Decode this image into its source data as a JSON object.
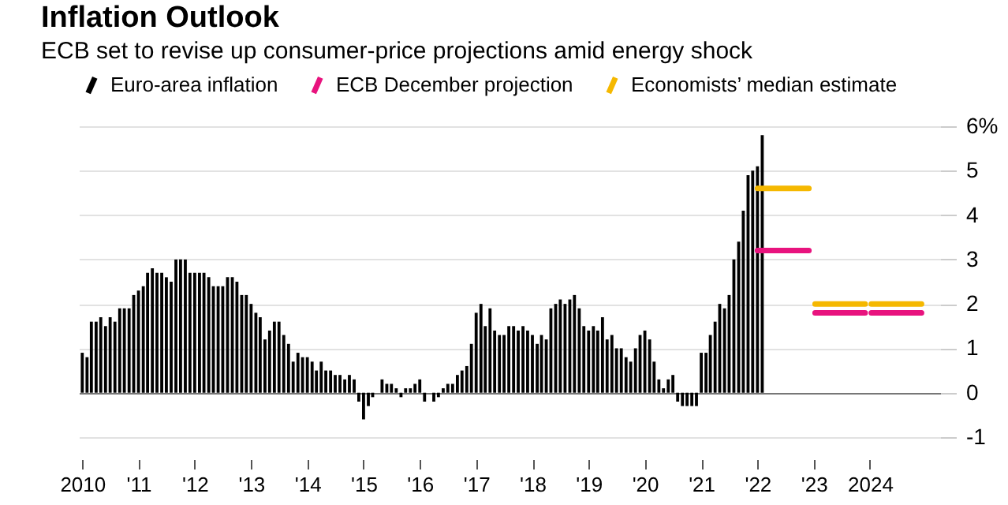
{
  "chart_data": {
    "type": "bar",
    "title": "Inflation Outlook",
    "subtitle": "ECB set to revise up consumer-price projections amid energy shock",
    "x": [
      "2010-01",
      "2010-02",
      "2010-03",
      "2010-04",
      "2010-05",
      "2010-06",
      "2010-07",
      "2010-08",
      "2010-09",
      "2010-10",
      "2010-11",
      "2010-12",
      "2011-01",
      "2011-02",
      "2011-03",
      "2011-04",
      "2011-05",
      "2011-06",
      "2011-07",
      "2011-08",
      "2011-09",
      "2011-10",
      "2011-11",
      "2011-12",
      "2012-01",
      "2012-02",
      "2012-03",
      "2012-04",
      "2012-05",
      "2012-06",
      "2012-07",
      "2012-08",
      "2012-09",
      "2012-10",
      "2012-11",
      "2012-12",
      "2013-01",
      "2013-02",
      "2013-03",
      "2013-04",
      "2013-05",
      "2013-06",
      "2013-07",
      "2013-08",
      "2013-09",
      "2013-10",
      "2013-11",
      "2013-12",
      "2014-01",
      "2014-02",
      "2014-03",
      "2014-04",
      "2014-05",
      "2014-06",
      "2014-07",
      "2014-08",
      "2014-09",
      "2014-10",
      "2014-11",
      "2014-12",
      "2015-01",
      "2015-02",
      "2015-03",
      "2015-04",
      "2015-05",
      "2015-06",
      "2015-07",
      "2015-08",
      "2015-09",
      "2015-10",
      "2015-11",
      "2015-12",
      "2016-01",
      "2016-02",
      "2016-03",
      "2016-04",
      "2016-05",
      "2016-06",
      "2016-07",
      "2016-08",
      "2016-09",
      "2016-10",
      "2016-11",
      "2016-12",
      "2017-01",
      "2017-02",
      "2017-03",
      "2017-04",
      "2017-05",
      "2017-06",
      "2017-07",
      "2017-08",
      "2017-09",
      "2017-10",
      "2017-11",
      "2017-12",
      "2018-01",
      "2018-02",
      "2018-03",
      "2018-04",
      "2018-05",
      "2018-06",
      "2018-07",
      "2018-08",
      "2018-09",
      "2018-10",
      "2018-11",
      "2018-12",
      "2019-01",
      "2019-02",
      "2019-03",
      "2019-04",
      "2019-05",
      "2019-06",
      "2019-07",
      "2019-08",
      "2019-09",
      "2019-10",
      "2019-11",
      "2019-12",
      "2020-01",
      "2020-02",
      "2020-03",
      "2020-04",
      "2020-05",
      "2020-06",
      "2020-07",
      "2020-08",
      "2020-09",
      "2020-10",
      "2020-11",
      "2020-12",
      "2021-01",
      "2021-02",
      "2021-03",
      "2021-04",
      "2021-05",
      "2021-06",
      "2021-07",
      "2021-08",
      "2021-09",
      "2021-10",
      "2021-11",
      "2021-12",
      "2022-01",
      "2022-02"
    ],
    "series": [
      {
        "name": "Euro-area inflation",
        "color": "#000000",
        "values": [
          0.9,
          0.8,
          1.6,
          1.6,
          1.7,
          1.5,
          1.7,
          1.6,
          1.9,
          1.9,
          1.9,
          2.2,
          2.3,
          2.4,
          2.7,
          2.8,
          2.7,
          2.7,
          2.6,
          2.5,
          3.0,
          3.0,
          3.0,
          2.7,
          2.7,
          2.7,
          2.7,
          2.6,
          2.4,
          2.4,
          2.4,
          2.6,
          2.6,
          2.5,
          2.2,
          2.2,
          2.0,
          1.8,
          1.7,
          1.2,
          1.4,
          1.6,
          1.6,
          1.3,
          1.1,
          0.7,
          0.9,
          0.8,
          0.8,
          0.7,
          0.5,
          0.7,
          0.5,
          0.5,
          0.4,
          0.4,
          0.3,
          0.4,
          0.3,
          -0.2,
          -0.6,
          -0.3,
          -0.1,
          0.0,
          0.3,
          0.2,
          0.2,
          0.1,
          -0.1,
          0.1,
          0.1,
          0.2,
          0.3,
          -0.2,
          0.0,
          -0.2,
          -0.1,
          0.1,
          0.2,
          0.2,
          0.4,
          0.5,
          0.6,
          1.1,
          1.8,
          2.0,
          1.5,
          1.9,
          1.4,
          1.3,
          1.3,
          1.5,
          1.5,
          1.4,
          1.5,
          1.4,
          1.3,
          1.1,
          1.3,
          1.2,
          1.9,
          2.0,
          2.1,
          2.0,
          2.1,
          2.2,
          1.9,
          1.5,
          1.4,
          1.5,
          1.4,
          1.7,
          1.2,
          1.3,
          1.0,
          1.0,
          0.8,
          0.7,
          1.0,
          1.3,
          1.4,
          1.2,
          0.7,
          0.3,
          0.1,
          0.3,
          0.4,
          -0.2,
          -0.3,
          -0.3,
          -0.3,
          -0.3,
          0.9,
          0.9,
          1.3,
          1.6,
          2.0,
          1.9,
          2.2,
          3.0,
          3.4,
          4.1,
          4.9,
          5.0,
          5.1,
          5.8
        ]
      },
      {
        "name": "ECB December projection",
        "type": "line",
        "color": "#e8137e",
        "x": [
          "2022-01",
          "2022-12",
          "2022-12-20",
          "2023-01-10",
          "2023-12",
          "2023-12-20",
          "2024-01-10",
          "2024-12"
        ],
        "values": [
          3.2,
          3.2,
          null,
          1.8,
          1.8,
          null,
          1.8,
          1.8
        ]
      },
      {
        "name": "Economists’ median estimate",
        "type": "line",
        "color": "#f5b800",
        "x": [
          "2022-01",
          "2022-12",
          "2022-12-20",
          "2023-01-10",
          "2023-12",
          "2023-12-20",
          "2024-01-10",
          "2024-12"
        ],
        "values": [
          4.6,
          4.6,
          null,
          2.0,
          2.0,
          null,
          2.0,
          2.0
        ]
      }
    ],
    "xlim": [
      "2009-12-10",
      "2025-04"
    ],
    "xticks": [
      {
        "value": "2010-01",
        "label": "2010"
      },
      {
        "value": "2011-01",
        "label": "'11"
      },
      {
        "value": "2012-01",
        "label": "'12"
      },
      {
        "value": "2013-01",
        "label": "'13"
      },
      {
        "value": "2014-01",
        "label": "'14"
      },
      {
        "value": "2015-01",
        "label": "'15"
      },
      {
        "value": "2016-01",
        "label": "'16"
      },
      {
        "value": "2017-01",
        "label": "'17"
      },
      {
        "value": "2018-01",
        "label": "'18"
      },
      {
        "value": "2019-01",
        "label": "'19"
      },
      {
        "value": "2020-01",
        "label": "'20"
      },
      {
        "value": "2021-01",
        "label": "'21"
      },
      {
        "value": "2022-01",
        "label": "'22"
      },
      {
        "value": "2023-01",
        "label": "'23"
      },
      {
        "value": "2024-01",
        "label": "2024"
      }
    ],
    "ylim": [
      -1,
      6
    ],
    "yticks": [
      -1,
      0,
      1,
      2,
      3,
      4,
      5,
      {
        "value": 6,
        "label": "6%"
      }
    ],
    "grid": "y",
    "legend": "top left"
  }
}
